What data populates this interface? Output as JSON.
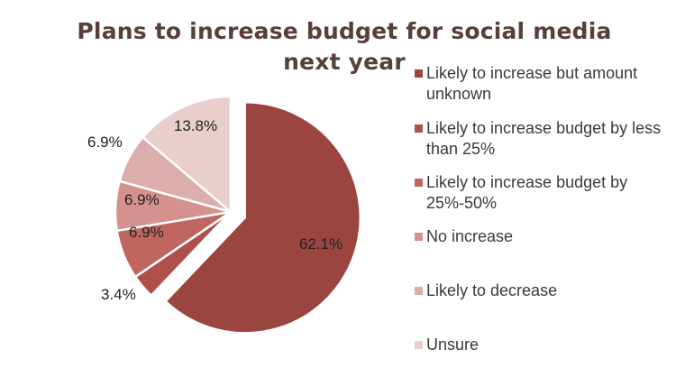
{
  "chart_data": {
    "type": "pie",
    "title": "Plans to increase budget for social media next year",
    "legend_position": "right",
    "slices": [
      {
        "label": "Likely to increase but amount unknown",
        "value": 62.1,
        "display": "62.1%",
        "color": "#9a4540",
        "exploded": true
      },
      {
        "label": "Likely to increase budget by less than 25%",
        "value": 3.4,
        "display": "3.4%",
        "color": "#b0504b",
        "exploded": false
      },
      {
        "label": "Likely to increase budget by 25%-50%",
        "value": 6.9,
        "display": "6.9%",
        "color": "#c06560",
        "exploded": false
      },
      {
        "label": "No increase",
        "value": 6.9,
        "display": "6.9%",
        "color": "#d4918d",
        "exploded": false
      },
      {
        "label": "Likely to decrease",
        "value": 6.9,
        "display": "6.9%",
        "color": "#dcaeab",
        "exploded": false
      },
      {
        "label": "Unsure",
        "value": 13.8,
        "display": "13.8%",
        "color": "#eacdcd",
        "exploded": false
      }
    ]
  }
}
